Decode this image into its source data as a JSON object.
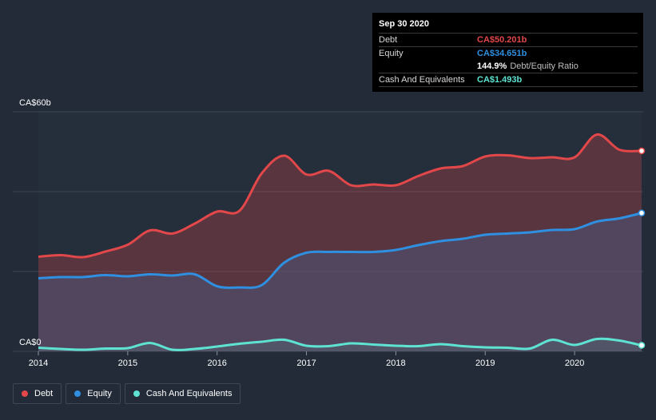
{
  "chart_data": {
    "type": "area",
    "title": "",
    "xlabel": "",
    "ylabel": "",
    "ylim": [
      0,
      60
    ],
    "y_ticks": [
      0,
      20,
      40,
      60
    ],
    "y_tick_labels_shown": [
      "CA$0",
      "CA$60b"
    ],
    "x_ticks": [
      2014,
      2015,
      2016,
      2017,
      2018,
      2019,
      2020
    ],
    "x_tick_labels": [
      "2014",
      "2015",
      "2016",
      "2017",
      "2018",
      "2019",
      "2020"
    ],
    "xlim": [
      2014,
      2020.75
    ],
    "series": [
      {
        "name": "Debt",
        "color": "#e2474a",
        "x": [
          2014.0,
          2014.25,
          2014.5,
          2014.75,
          2015.0,
          2015.25,
          2015.5,
          2015.75,
          2016.0,
          2016.25,
          2016.5,
          2016.75,
          2017.0,
          2017.25,
          2017.5,
          2017.75,
          2018.0,
          2018.25,
          2018.5,
          2018.75,
          2019.0,
          2019.25,
          2019.5,
          2019.75,
          2020.0,
          2020.25,
          2020.5,
          2020.75
        ],
        "values": [
          23.7,
          24.1,
          23.6,
          25.0,
          26.7,
          30.3,
          29.5,
          32.0,
          35.0,
          35.2,
          44.6,
          49.0,
          44.3,
          45.2,
          41.6,
          41.8,
          41.6,
          43.9,
          45.8,
          46.4,
          48.8,
          49.1,
          48.4,
          48.6,
          48.6,
          54.3,
          50.5,
          50.201
        ]
      },
      {
        "name": "Equity",
        "color": "#2f8fe0",
        "x": [
          2014.0,
          2014.25,
          2014.5,
          2014.75,
          2015.0,
          2015.25,
          2015.5,
          2015.75,
          2016.0,
          2016.25,
          2016.5,
          2016.75,
          2017.0,
          2017.25,
          2017.5,
          2017.75,
          2018.0,
          2018.25,
          2018.5,
          2018.75,
          2019.0,
          2019.25,
          2019.5,
          2019.75,
          2020.0,
          2020.25,
          2020.5,
          2020.75
        ],
        "values": [
          18.3,
          18.6,
          18.6,
          19.1,
          18.8,
          19.3,
          19.0,
          19.3,
          16.3,
          16.0,
          16.6,
          22.2,
          24.7,
          24.9,
          24.9,
          24.9,
          25.4,
          26.6,
          27.6,
          28.2,
          29.2,
          29.5,
          29.8,
          30.4,
          30.6,
          32.5,
          33.3,
          34.651
        ]
      },
      {
        "name": "Cash And Equivalents",
        "color": "#5ee3d2",
        "x": [
          2014.0,
          2014.25,
          2014.5,
          2014.75,
          2015.0,
          2015.25,
          2015.5,
          2015.75,
          2016.0,
          2016.25,
          2016.5,
          2016.75,
          2017.0,
          2017.25,
          2017.5,
          2017.75,
          2018.0,
          2018.25,
          2018.5,
          2018.75,
          2019.0,
          2019.25,
          2019.5,
          2019.75,
          2020.0,
          2020.25,
          2020.5,
          2020.75
        ],
        "values": [
          0.9,
          0.6,
          0.4,
          0.7,
          0.8,
          2.1,
          0.4,
          0.6,
          1.2,
          1.9,
          2.4,
          2.9,
          1.4,
          1.3,
          2.0,
          1.7,
          1.4,
          1.3,
          1.8,
          1.3,
          1.0,
          0.9,
          0.7,
          2.9,
          1.6,
          3.1,
          2.7,
          1.493
        ]
      }
    ],
    "tooltip": {
      "date": "Sep 30 2020",
      "rows": [
        {
          "label": "Debt",
          "value": "CA$50.201b",
          "color": "#e2474a"
        },
        {
          "label": "Equity",
          "value": "CA$34.651b",
          "color": "#2f8fe0"
        },
        {
          "label": "Cash And Equivalents",
          "value": "CA$1.493b",
          "color": "#5ee3d2"
        }
      ],
      "ratio_value": "144.9%",
      "ratio_label": "Debt/Equity Ratio"
    },
    "legend": [
      {
        "label": "Debt",
        "color": "#e2474a"
      },
      {
        "label": "Equity",
        "color": "#2f8fe0"
      },
      {
        "label": "Cash And Equivalents",
        "color": "#5ee3d2"
      }
    ]
  }
}
